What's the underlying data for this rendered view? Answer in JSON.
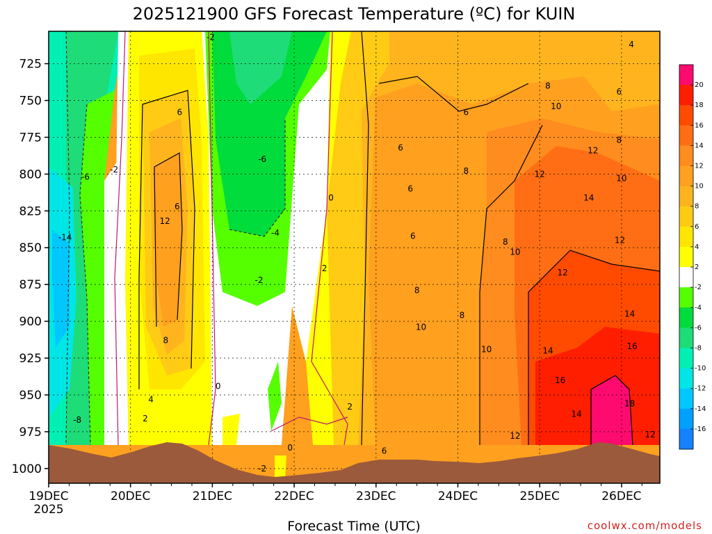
{
  "chart_data": {
    "type": "heatmap",
    "title": "2025121900 GFS Forecast Temperature (ºC) for KUIN",
    "xlabel": "Forecast Time (UTC)",
    "ylabel": "",
    "credit": "coolwx.com/models",
    "x_ticks": [
      "19DEC",
      "20DEC",
      "21DEC",
      "22DEC",
      "23DEC",
      "24DEC",
      "25DEC",
      "26DEC"
    ],
    "x_tick_year": "2025",
    "y_ticks": [
      725,
      750,
      775,
      800,
      825,
      850,
      875,
      900,
      925,
      950,
      975,
      1000
    ],
    "ylim": [
      1010,
      703
    ],
    "y_scale": "pressure (hPa), decreasing upward",
    "grid": true,
    "colorbar": {
      "labels": [
        "20",
        "18",
        "16",
        "14",
        "12",
        "10",
        "8",
        "6",
        "4",
        "2",
        "-2",
        "-4",
        "-6",
        "-8",
        "-10",
        "-12",
        "-14",
        "-16"
      ],
      "colors": [
        "#ff0a6e",
        "#ff1e00",
        "#ff4b00",
        "#ff6e14",
        "#ff8c1e",
        "#ffa01e",
        "#ffb41e",
        "#ffcb14",
        "#ffe600",
        "#ffff00",
        "#ffffff",
        "#55ff00",
        "#00dc3c",
        "#1edc78",
        "#00f0b4",
        "#00e6e6",
        "#00c8ff",
        "#00a0ff",
        "#1482ff"
      ]
    },
    "contour_labels": [
      {
        "value": "-14",
        "x": 0.2,
        "y": 843
      },
      {
        "value": "-6",
        "x": 0.45,
        "y": 802
      },
      {
        "value": "-2",
        "x": 0.8,
        "y": 797
      },
      {
        "value": "-8",
        "x": 0.35,
        "y": 967
      },
      {
        "value": "6",
        "x": 1.6,
        "y": 758
      },
      {
        "value": "6",
        "x": 1.57,
        "y": 822
      },
      {
        "value": "12",
        "x": 1.42,
        "y": 832
      },
      {
        "value": "8",
        "x": 1.43,
        "y": 913
      },
      {
        "value": "4",
        "x": 1.25,
        "y": 953
      },
      {
        "value": "2",
        "x": 1.18,
        "y": 966
      },
      {
        "value": "-2",
        "x": 1.98,
        "y": 707
      },
      {
        "value": "-6",
        "x": 2.61,
        "y": 790
      },
      {
        "value": "-4",
        "x": 2.77,
        "y": 840
      },
      {
        "value": "-2",
        "x": 2.57,
        "y": 872
      },
      {
        "value": "0",
        "x": 2.07,
        "y": 944
      },
      {
        "value": "0",
        "x": 3.45,
        "y": 816
      },
      {
        "value": "2",
        "x": 3.37,
        "y": 864
      },
      {
        "value": "-2",
        "x": 2.61,
        "y": 1000
      },
      {
        "value": "0",
        "x": 2.95,
        "y": 986
      },
      {
        "value": "2",
        "x": 3.68,
        "y": 958
      },
      {
        "value": "6",
        "x": 4.1,
        "y": 988
      },
      {
        "value": "6",
        "x": 4.3,
        "y": 782
      },
      {
        "value": "6",
        "x": 4.42,
        "y": 810
      },
      {
        "value": "6",
        "x": 4.45,
        "y": 842
      },
      {
        "value": "8",
        "x": 4.5,
        "y": 879
      },
      {
        "value": "10",
        "x": 4.55,
        "y": 904
      },
      {
        "value": "6",
        "x": 5.1,
        "y": 758
      },
      {
        "value": "8",
        "x": 5.1,
        "y": 798
      },
      {
        "value": "8",
        "x": 5.05,
        "y": 896
      },
      {
        "value": "10",
        "x": 5.35,
        "y": 919
      },
      {
        "value": "8",
        "x": 6.1,
        "y": 740
      },
      {
        "value": "10",
        "x": 6.2,
        "y": 754
      },
      {
        "value": "12",
        "x": 6.0,
        "y": 800
      },
      {
        "value": "8",
        "x": 5.58,
        "y": 846
      },
      {
        "value": "10",
        "x": 5.7,
        "y": 853
      },
      {
        "value": "12",
        "x": 6.28,
        "y": 867
      },
      {
        "value": "12",
        "x": 6.65,
        "y": 784
      },
      {
        "value": "14",
        "x": 6.6,
        "y": 816
      },
      {
        "value": "12",
        "x": 6.98,
        "y": 845
      },
      {
        "value": "14",
        "x": 6.1,
        "y": 920
      },
      {
        "value": "16",
        "x": 6.25,
        "y": 940
      },
      {
        "value": "14",
        "x": 6.45,
        "y": 963
      },
      {
        "value": "12",
        "x": 5.7,
        "y": 978
      },
      {
        "value": "4",
        "x": 7.12,
        "y": 712
      },
      {
        "value": "6",
        "x": 6.97,
        "y": 744
      },
      {
        "value": "8",
        "x": 6.97,
        "y": 777
      },
      {
        "value": "10",
        "x": 7.0,
        "y": 803
      },
      {
        "value": "14",
        "x": 7.1,
        "y": 895
      },
      {
        "value": "16",
        "x": 7.13,
        "y": 917
      },
      {
        "value": "18",
        "x": 7.1,
        "y": 956
      },
      {
        "value": "12",
        "x": 7.35,
        "y": 977
      }
    ]
  }
}
